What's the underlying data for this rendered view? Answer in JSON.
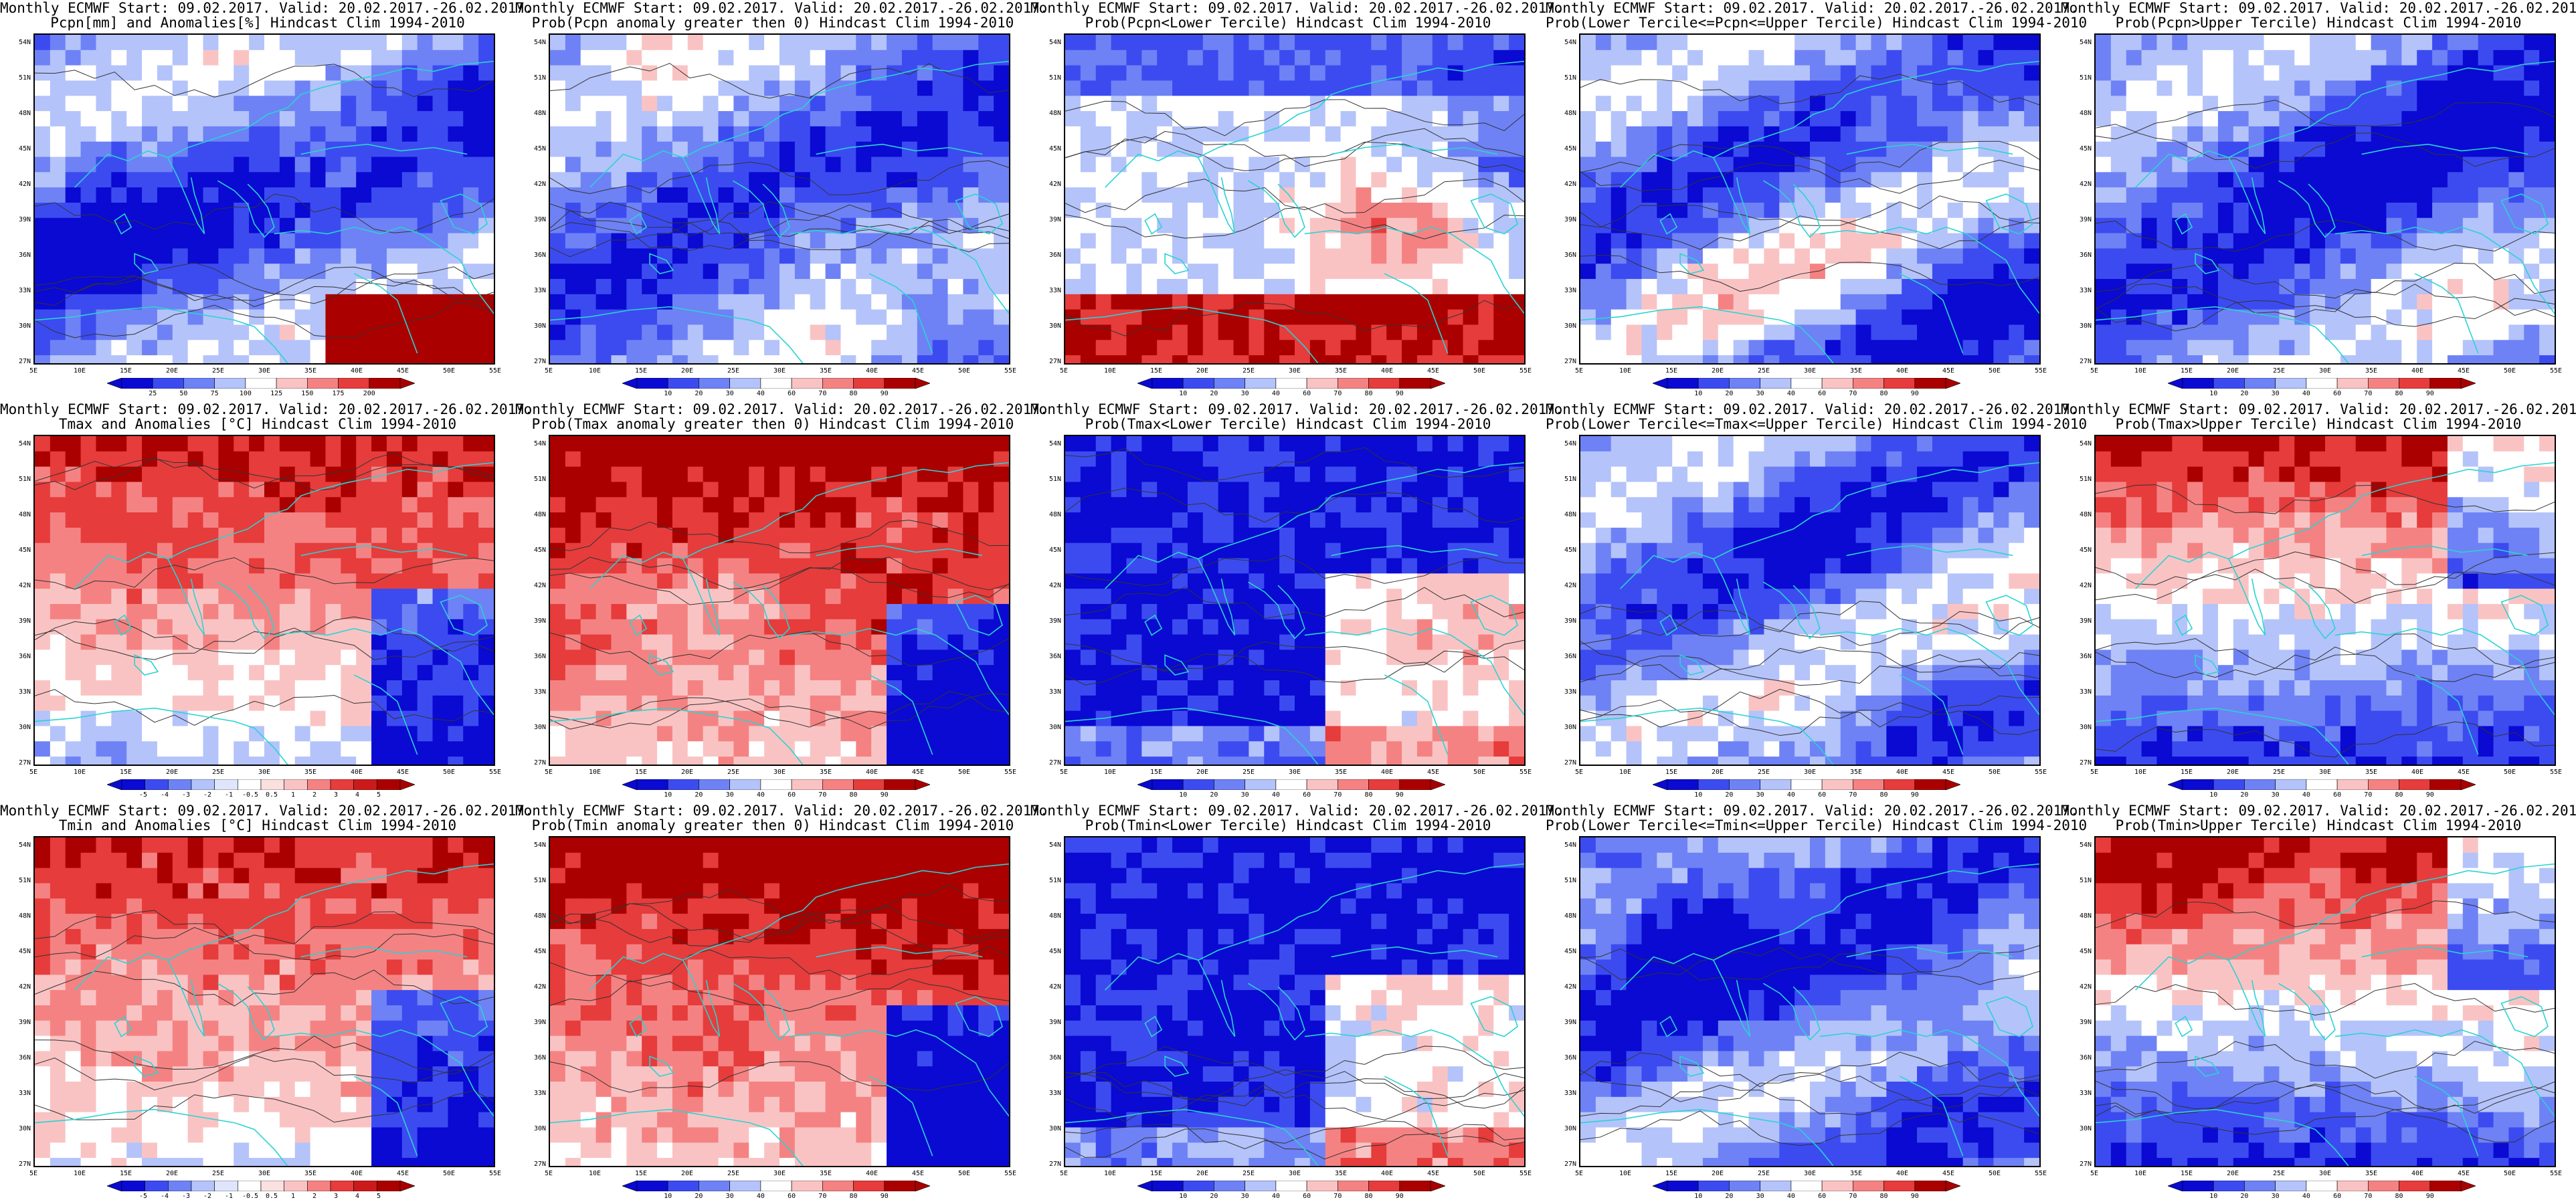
{
  "panels": [
    {
      "title1": "Monthly ECMWF Start: 09.02.2017. Valid: 20.02.2017.-26.02.2017.",
      "title2": "Pcpn[mm] and Anomalies[%] Hindcast Clim 1994-2010",
      "palette": "precip",
      "colorbar": [
        "25",
        "50",
        "75",
        "100",
        "125",
        "150",
        "175",
        "200"
      ]
    },
    {
      "title1": "Monthly ECMWF Start: 09.02.2017. Valid: 20.02.2017.-26.02.2017.",
      "title2": "Prob(Pcpn anomaly greater then 0) Hindcast Clim 1994-2010",
      "palette": "prob-dry",
      "colorbar": [
        "10",
        "20",
        "30",
        "40",
        "60",
        "70",
        "80",
        "90"
      ]
    },
    {
      "title1": "Monthly ECMWF Start: 09.02.2017. Valid: 20.02.2017.-26.02.2017.",
      "title2": "Prob(Pcpn<Lower Tercile) Hindcast Clim 1994-2010",
      "palette": "prob-lower",
      "colorbar": [
        "10",
        "20",
        "30",
        "40",
        "60",
        "70",
        "80",
        "90"
      ]
    },
    {
      "title1": "Monthly ECMWF Start: 09.02.2017. Valid: 20.02.2017.-26.02.2017.",
      "title2": "Prob(Lower Tercile<=Pcpn<=Upper Tercile) Hindcast Clim 1994-2010",
      "palette": "prob-mid",
      "colorbar": [
        "10",
        "20",
        "30",
        "40",
        "60",
        "70",
        "80",
        "90"
      ]
    },
    {
      "title1": "Monthly ECMWF Start: 09.02.2017. Valid: 20.02.2017.-26.02.2017.",
      "title2": "Prob(Pcpn>Upper Tercile) Hindcast Clim 1994-2010",
      "palette": "prob-dry",
      "colorbar": [
        "10",
        "20",
        "30",
        "40",
        "60",
        "70",
        "80",
        "90"
      ]
    },
    {
      "title1": "Monthly ECMWF Start: 09.02.2017. Valid: 20.02.2017.-26.02.2017.",
      "title2": "Tmax and Anomalies [°C] Hindcast Clim 1994-2010",
      "palette": "warm",
      "colorbar": [
        "-5",
        "-4",
        "-3",
        "-2",
        "-1",
        "-0.5",
        "0.5",
        "1",
        "2",
        "3",
        "4",
        "5"
      ]
    },
    {
      "title1": "Monthly ECMWF Start: 09.02.2017. Valid: 20.02.2017.-26.02.2017.",
      "title2": "Prob(Tmax anomaly greater then 0) Hindcast Clim 1994-2010",
      "palette": "very-warm",
      "colorbar": [
        "10",
        "20",
        "30",
        "40",
        "60",
        "70",
        "80",
        "90"
      ]
    },
    {
      "title1": "Monthly ECMWF Start: 09.02.2017. Valid: 20.02.2017.-26.02.2017.",
      "title2": "Prob(Tmax<Lower Tercile) Hindcast Clim 1994-2010",
      "palette": "cold",
      "colorbar": [
        "10",
        "20",
        "30",
        "40",
        "60",
        "70",
        "80",
        "90"
      ]
    },
    {
      "title1": "Monthly ECMWF Start: 09.02.2017. Valid: 20.02.2017.-26.02.2017.",
      "title2": "Prob(Lower Tercile<=Tmax<=Upper Tercile) Hindcast Clim 1994-2010",
      "palette": "prob-mid",
      "colorbar": [
        "10",
        "20",
        "30",
        "40",
        "60",
        "70",
        "80",
        "90"
      ]
    },
    {
      "title1": "Monthly ECMWF Start: 09.02.2017. Valid: 20.02.2017.-26.02.2017.",
      "title2": "Prob(Tmax>Upper Tercile) Hindcast Clim 1994-2010",
      "palette": "split",
      "colorbar": [
        "10",
        "20",
        "30",
        "40",
        "60",
        "70",
        "80",
        "90"
      ]
    },
    {
      "title1": "Monthly ECMWF Start: 09.02.2017. Valid: 20.02.2017.-26.02.2017.",
      "title2": "Tmin and Anomalies [°C] Hindcast Clim 1994-2010",
      "palette": "warm",
      "colorbar": [
        "-5",
        "-4",
        "-3",
        "-2",
        "-1",
        "-0.5",
        "0.5",
        "1",
        "2",
        "3",
        "4",
        "5"
      ]
    },
    {
      "title1": "Monthly ECMWF Start: 09.02.2017. Valid: 20.02.2017.-26.02.2017.",
      "title2": "Prob(Tmin anomaly greater then 0) Hindcast Clim 1994-2010",
      "palette": "very-warm",
      "colorbar": [
        "10",
        "20",
        "30",
        "40",
        "60",
        "70",
        "80",
        "90"
      ]
    },
    {
      "title1": "Monthly ECMWF Start: 09.02.2017. Valid: 20.02.2017.-26.02.2017.",
      "title2": "Prob(Tmin<Lower Tercile) Hindcast Clim 1994-2010",
      "palette": "cold",
      "colorbar": [
        "10",
        "20",
        "30",
        "40",
        "60",
        "70",
        "80",
        "90"
      ]
    },
    {
      "title1": "Monthly ECMWF Start: 09.02.2017. Valid: 20.02.2017.-26.02.2017.",
      "title2": "Prob(Lower Tercile<=Tmin<=Upper Tercile) Hindcast Clim 1994-2010",
      "palette": "prob-mid",
      "colorbar": [
        "10",
        "20",
        "30",
        "40",
        "60",
        "70",
        "80",
        "90"
      ]
    },
    {
      "title1": "Monthly ECMWF Start: 09.02.2017. Valid: 20.02.2017.-26.02.2017.",
      "title2": "Prob(Tmin>Upper Tercile) Hindcast Clim 1994-2010",
      "palette": "split",
      "colorbar": [
        "10",
        "20",
        "30",
        "40",
        "60",
        "70",
        "80",
        "90"
      ]
    }
  ],
  "lat_labels": [
    "54N",
    "51N",
    "48N",
    "45N",
    "42N",
    "39N",
    "36N",
    "33N",
    "30N",
    "27N"
  ],
  "lon_labels": [
    "5E",
    "10E",
    "15E",
    "20E",
    "25E",
    "30E",
    "35E",
    "40E",
    "45E",
    "50E",
    "55E"
  ],
  "colors": {
    "deep_blue": "#0a0ad2",
    "blue": "#3c4bf0",
    "mid_blue": "#6e82f5",
    "light_blue": "#b4c3fa",
    "white": "#ffffff",
    "light_red": "#fac3c3",
    "mid_red": "#f58282",
    "red": "#e63c3c",
    "dark_red": "#aa0000",
    "coast": "#2ad3d3",
    "contour": "#333333"
  }
}
